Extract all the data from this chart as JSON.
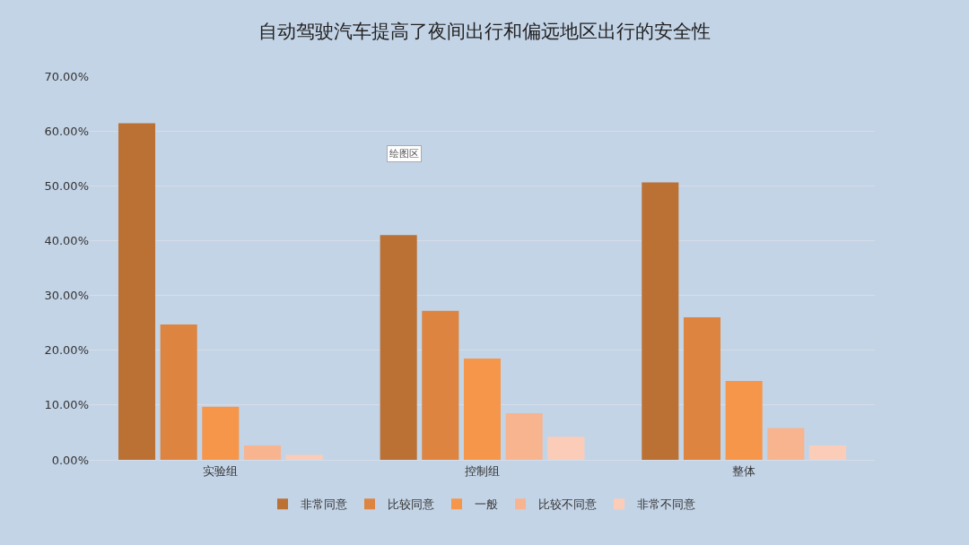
{
  "chart_data": {
    "type": "bar",
    "title": "自动驾驶汽车提高了夜间出行和偏远地区出行的安全性",
    "categories": [
      "实验组",
      "控制组",
      "整体"
    ],
    "series": [
      {
        "name": "非常同意",
        "color": "#bb7133",
        "values": [
          61.4,
          41.0,
          50.6
        ]
      },
      {
        "name": "比较同意",
        "color": "#dc8440",
        "values": [
          24.7,
          27.2,
          26.0
        ]
      },
      {
        "name": "一般",
        "color": "#f5964a",
        "values": [
          9.7,
          18.5,
          14.4
        ]
      },
      {
        "name": "比较不同意",
        "color": "#f7b48f",
        "values": [
          2.6,
          8.5,
          5.8
        ]
      },
      {
        "name": "非常不同意",
        "color": "#fbcdb8",
        "values": [
          0.9,
          4.2,
          2.6
        ]
      }
    ],
    "ylim": [
      0,
      70
    ],
    "yticks": [
      {
        "value": 0,
        "label": "0.00%"
      },
      {
        "value": 10,
        "label": "10.00%"
      },
      {
        "value": 20,
        "label": "20.00%"
      },
      {
        "value": 30,
        "label": "30.00%"
      },
      {
        "value": 40,
        "label": "40.00%"
      },
      {
        "value": 50,
        "label": "50.00%"
      },
      {
        "value": 60,
        "label": "60.00%"
      },
      {
        "value": 70,
        "label": "70.00%"
      }
    ],
    "grid": "y",
    "legend": "bottom",
    "annotations": [
      "绘图区"
    ]
  }
}
